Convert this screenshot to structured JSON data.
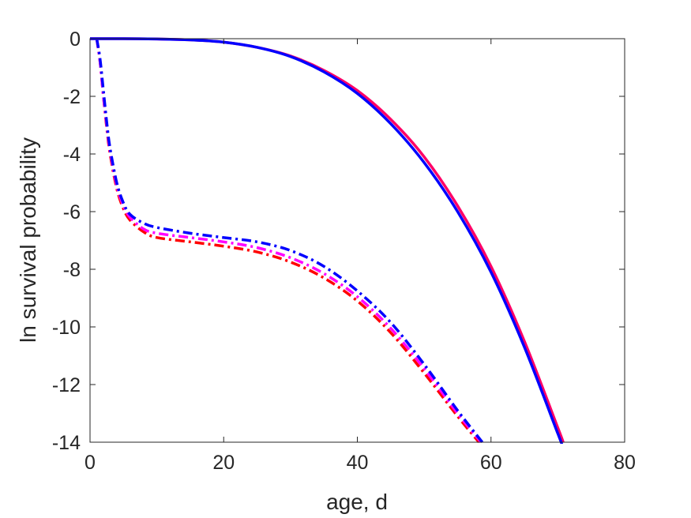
{
  "chart_data": {
    "type": "line",
    "title": "",
    "xlabel": "age, d",
    "ylabel": "ln survival probability",
    "xlim": [
      0,
      80
    ],
    "ylim": [
      -14,
      0
    ],
    "xticks": [
      0,
      20,
      40,
      60,
      80
    ],
    "yticks": [
      0,
      -2,
      -4,
      -6,
      -8,
      -10,
      -12,
      -14
    ],
    "xtick_labels": [
      "0",
      "20",
      "40",
      "60",
      "80"
    ],
    "ytick_labels": [
      "0",
      "-2",
      "-4",
      "-6",
      "-8",
      "-10",
      "-12",
      "-14"
    ],
    "grid": false,
    "legend": "none",
    "series": [
      {
        "color": "#ff0000",
        "style": "dashdot",
        "x": [
          1,
          1.5,
          2,
          2.5,
          3,
          4,
          5,
          6,
          8,
          10,
          15,
          20,
          25,
          30,
          35,
          40,
          45,
          50,
          55,
          58.2
        ],
        "y": [
          0,
          -0.8,
          -2.0,
          -3.1,
          -4.0,
          -5.2,
          -5.9,
          -6.3,
          -6.7,
          -6.9,
          -7.05,
          -7.2,
          -7.4,
          -7.75,
          -8.3,
          -9.1,
          -10.2,
          -11.6,
          -13.1,
          -14
        ]
      },
      {
        "color": "#ff00ff",
        "style": "dashdot",
        "x": [
          1,
          1.5,
          2,
          2.5,
          3,
          4,
          5,
          6,
          8,
          10,
          15,
          20,
          25,
          30,
          35,
          40,
          45,
          50,
          55,
          58.5
        ],
        "y": [
          0,
          -0.8,
          -2.0,
          -3.0,
          -3.9,
          -5.1,
          -5.8,
          -6.2,
          -6.6,
          -6.75,
          -6.9,
          -7.05,
          -7.25,
          -7.6,
          -8.15,
          -8.95,
          -10.05,
          -11.45,
          -13.0,
          -14
        ]
      },
      {
        "color": "#0000ff",
        "style": "dashdot",
        "x": [
          1,
          1.5,
          2,
          2.5,
          3,
          4,
          5,
          6,
          8,
          10,
          15,
          20,
          25,
          30,
          35,
          40,
          45,
          50,
          55,
          58.7
        ],
        "y": [
          0,
          -0.7,
          -1.8,
          -2.9,
          -3.8,
          -5.0,
          -5.7,
          -6.1,
          -6.4,
          -6.55,
          -6.75,
          -6.9,
          -7.05,
          -7.35,
          -7.9,
          -8.75,
          -9.85,
          -11.3,
          -12.9,
          -14
        ]
      },
      {
        "color": "#ff0066",
        "style": "solid",
        "x": [
          0,
          5,
          10,
          15,
          20,
          25,
          30,
          35,
          40,
          45,
          50,
          55,
          60,
          65,
          70,
          70.8
        ],
        "y": [
          0,
          0,
          -0.01,
          -0.04,
          -0.12,
          -0.3,
          -0.6,
          -1.1,
          -1.8,
          -2.8,
          -4.1,
          -5.8,
          -7.9,
          -10.5,
          -13.5,
          -14
        ]
      },
      {
        "color": "#0000ff",
        "style": "solid",
        "x": [
          0,
          5,
          10,
          15,
          20,
          25,
          30,
          35,
          40,
          45,
          50,
          55,
          60,
          65,
          70,
          70.5
        ],
        "y": [
          0,
          0,
          -0.01,
          -0.04,
          -0.12,
          -0.3,
          -0.62,
          -1.15,
          -1.9,
          -2.95,
          -4.3,
          -6.0,
          -8.1,
          -10.7,
          -13.7,
          -14
        ]
      }
    ]
  }
}
